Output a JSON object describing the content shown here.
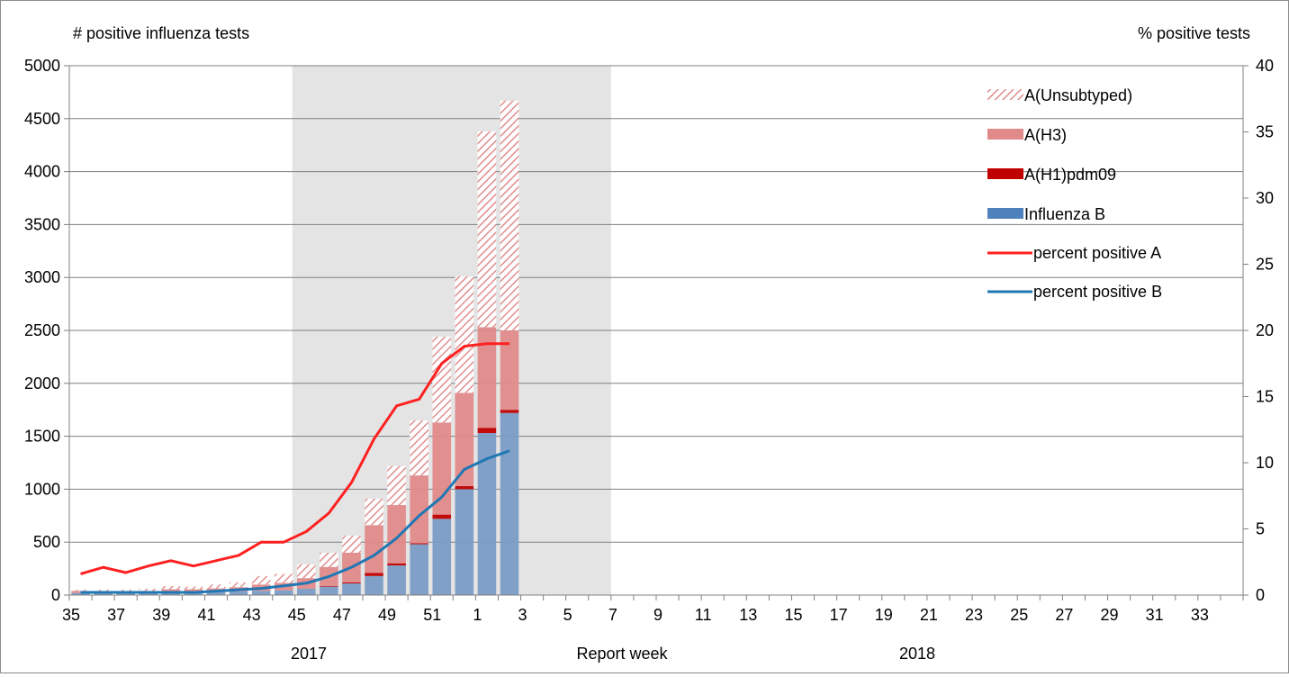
{
  "chart_data": {
    "type": "bar",
    "title": "",
    "ylabel_left": "# positive influenza tests",
    "ylabel_right": "% positive tests",
    "xlabel": "Report week",
    "year_labels": [
      "2017",
      "2018"
    ],
    "ylim_left": [
      0,
      5000
    ],
    "ylim_right": [
      0,
      40
    ],
    "left_ticks": [
      "0",
      "500",
      "1000",
      "1500",
      "2000",
      "2500",
      "3000",
      "3500",
      "4000",
      "4500",
      "5000"
    ],
    "right_ticks": [
      "0",
      "5",
      "10",
      "15",
      "20",
      "25",
      "30",
      "35",
      "40"
    ],
    "grid": true,
    "legend_position": "top-right",
    "highlight_weeks": [
      "45",
      "6"
    ],
    "weeks": [
      "35",
      "36",
      "37",
      "38",
      "39",
      "40",
      "41",
      "42",
      "43",
      "44",
      "45",
      "46",
      "47",
      "48",
      "49",
      "50",
      "51",
      "52",
      "1",
      "2",
      "3",
      "4",
      "5",
      "6",
      "7",
      "8",
      "9",
      "10",
      "11",
      "12",
      "13",
      "14",
      "15",
      "16",
      "17",
      "18",
      "19",
      "20",
      "21",
      "22",
      "23",
      "24",
      "25",
      "26",
      "27",
      "28",
      "29",
      "30",
      "31",
      "32",
      "33",
      "34"
    ],
    "x_tick_labels": [
      "35",
      "37",
      "39",
      "41",
      "43",
      "45",
      "47",
      "49",
      "51",
      "1",
      "3",
      "5",
      "7",
      "9",
      "11",
      "13",
      "15",
      "17",
      "19",
      "21",
      "23",
      "25",
      "27",
      "29",
      "31",
      "33"
    ],
    "bar_series": [
      {
        "name": "Influenza B",
        "color": "#7a9cc6",
        "values": [
          20,
          18,
          18,
          20,
          25,
          25,
          28,
          35,
          40,
          45,
          60,
          80,
          110,
          180,
          280,
          480,
          720,
          1000,
          1530,
          1720
        ]
      },
      {
        "name": "A(H1)pdm09",
        "color": "#c00000",
        "values": [
          0,
          0,
          0,
          0,
          0,
          0,
          0,
          0,
          0,
          0,
          0,
          5,
          10,
          30,
          20,
          10,
          40,
          30,
          50,
          30
        ]
      },
      {
        "name": "A(H3)",
        "color": "#e08a8a",
        "values": [
          20,
          18,
          20,
          20,
          30,
          30,
          35,
          40,
          60,
          70,
          100,
          180,
          280,
          450,
          550,
          640,
          870,
          880,
          950,
          750
        ]
      },
      {
        "name": "A(Unsubtyped)",
        "color": "#e08a8a",
        "pattern": "hatched",
        "values": [
          10,
          14,
          12,
          20,
          30,
          25,
          37,
          45,
          80,
          85,
          130,
          135,
          160,
          250,
          370,
          520,
          810,
          1100,
          1850,
          2170
        ]
      }
    ],
    "line_series": [
      {
        "name": "percent positive A",
        "color": "#ff2020",
        "values": [
          1.6,
          2.1,
          1.7,
          2.2,
          2.6,
          2.2,
          2.6,
          3.0,
          4.0,
          4.0,
          4.8,
          6.2,
          8.5,
          11.8,
          14.3,
          14.8,
          17.5,
          18.8,
          19.0,
          19.0
        ]
      },
      {
        "name": "percent positive B",
        "color": "#1f77b4",
        "values": [
          0.2,
          0.2,
          0.2,
          0.2,
          0.2,
          0.2,
          0.3,
          0.4,
          0.5,
          0.7,
          0.9,
          1.4,
          2.1,
          3.0,
          4.3,
          6.0,
          7.4,
          9.5,
          10.3,
          10.9
        ]
      }
    ]
  }
}
